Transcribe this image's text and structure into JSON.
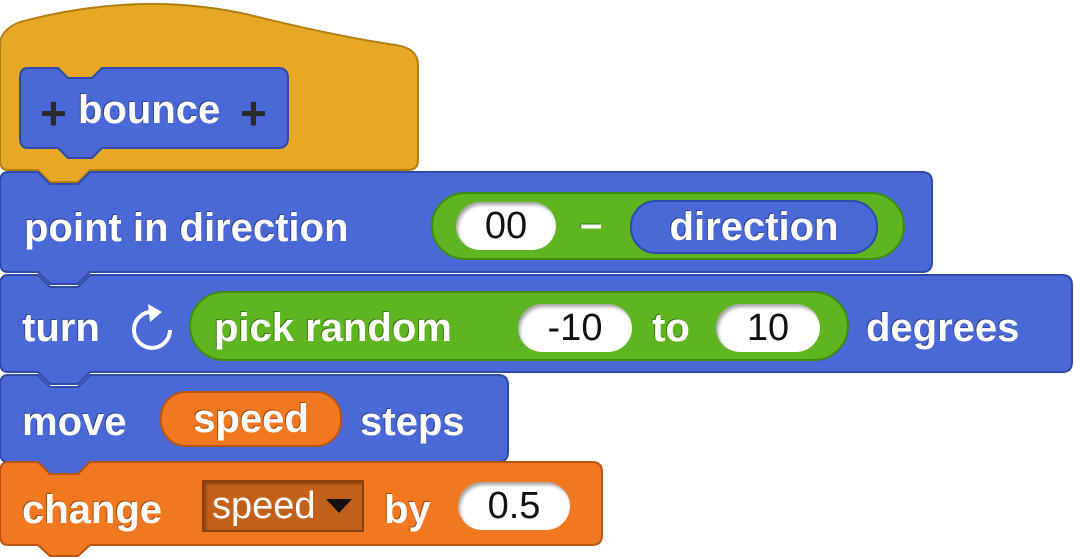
{
  "hat": {
    "plus_left": "+",
    "name": "bounce",
    "plus_right": "+"
  },
  "point_block": {
    "label": "point in direction",
    "value": "00",
    "operator": "–",
    "reporter": "direction"
  },
  "turn_block": {
    "label": "turn",
    "icon": "rotate-clockwise-icon",
    "pick": "pick random",
    "from": "-10",
    "to_label": "to",
    "to": "10",
    "suffix": "degrees"
  },
  "move_block": {
    "label": "move",
    "reporter": "speed",
    "suffix": "steps"
  },
  "change_block": {
    "label": "change",
    "variable": "speed",
    "by_label": "by",
    "value": "0.5"
  },
  "colors": {
    "hat": "#e6a825",
    "motion": "#4a68d6",
    "operators": "#5fb51f",
    "variables": "#f07820"
  }
}
